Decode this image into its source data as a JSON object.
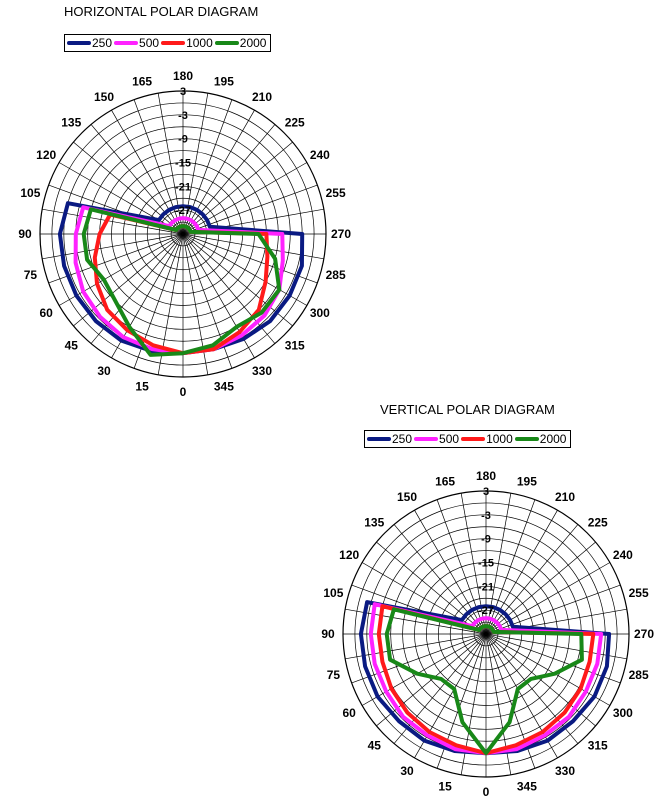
{
  "chart_data": [
    {
      "type": "polar-line",
      "title": "HORIZONTAL POLAR DIAGRAM",
      "angle_labels": [
        "0",
        "15",
        "30",
        "45",
        "60",
        "75",
        "90",
        "105",
        "120",
        "135",
        "150",
        "165",
        "180",
        "195",
        "210",
        "225",
        "240",
        "255",
        "270",
        "285",
        "300",
        "315",
        "330",
        "345"
      ],
      "radial_labels": [
        "3",
        "-3",
        "-9",
        "-15",
        "-21",
        "-27"
      ],
      "rlim": [
        -33,
        3
      ],
      "angles": [
        0,
        15,
        30,
        45,
        60,
        75,
        90,
        105,
        120,
        135,
        150,
        165,
        180,
        195,
        210,
        225,
        240,
        255,
        270,
        285,
        300,
        315,
        330,
        345
      ],
      "series": [
        {
          "name": "250",
          "color": "#0a1a82",
          "values": [
            -3,
            -2.5,
            -2,
            -2,
            -2,
            -2,
            -2,
            -3,
            -26,
            -26,
            -26,
            -26,
            -26,
            -26,
            -26,
            -26,
            -26,
            -26,
            -3,
            -2,
            -2,
            -2,
            -2.5,
            -3
          ]
        },
        {
          "name": "500",
          "color": "#ff22ff",
          "values": [
            -3,
            -3,
            -3,
            -3.5,
            -4,
            -5,
            -6,
            -7,
            -29,
            -29,
            -29,
            -29,
            -29,
            -29,
            -29,
            -29,
            -29,
            -29,
            -8,
            -7,
            -5,
            -4,
            -3.5,
            -3
          ]
        },
        {
          "name": "1000",
          "color": "#ff1a1a",
          "values": [
            -3,
            -4,
            -5,
            -6,
            -8,
            -10,
            -12,
            -14,
            -31,
            -31,
            -31,
            -31,
            -31,
            -31,
            -31,
            -31,
            -31,
            -31,
            -12,
            -11,
            -9,
            -6,
            -4.5,
            -3
          ]
        },
        {
          "name": "2000",
          "color": "#188818",
          "values": [
            -3,
            -1.5,
            -6,
            -9,
            -10,
            -8,
            -8,
            -9,
            -31,
            -31,
            -31,
            -31,
            -31,
            -31,
            -31,
            -31,
            -31,
            -31,
            -14,
            -9,
            -5,
            -5,
            -6,
            -4
          ]
        }
      ]
    },
    {
      "type": "polar-line",
      "title": "VERTICAL POLAR DIAGRAM",
      "angle_labels": [
        "0",
        "15",
        "30",
        "45",
        "60",
        "75",
        "90",
        "105",
        "120",
        "135",
        "150",
        "165",
        "180",
        "195",
        "210",
        "225",
        "240",
        "255",
        "270",
        "285",
        "300",
        "315",
        "330",
        "345"
      ],
      "radial_labels": [
        "3",
        "-3",
        "-9",
        "-15",
        "-21",
        "-27"
      ],
      "rlim": [
        -33,
        3
      ],
      "angles": [
        0,
        15,
        30,
        45,
        60,
        75,
        90,
        105,
        120,
        135,
        150,
        165,
        180,
        195,
        210,
        225,
        240,
        255,
        270,
        285,
        300,
        315,
        330,
        345
      ],
      "series": [
        {
          "name": "250",
          "color": "#0a1a82",
          "values": [
            -3,
            -2.5,
            -2,
            -2,
            -1.5,
            -1.5,
            -1.5,
            -2,
            -26,
            -26,
            -26,
            -26,
            -26,
            -26,
            -26,
            -26,
            -26,
            -26,
            -2,
            -1.5,
            -1.5,
            -2,
            -2,
            -2.5
          ]
        },
        {
          "name": "500",
          "color": "#ff22ff",
          "values": [
            -3,
            -3,
            -3.5,
            -3.5,
            -4,
            -4,
            -4,
            -4,
            -29,
            -29,
            -29,
            -29,
            -29,
            -29,
            -29,
            -29,
            -29,
            -29,
            -4,
            -4,
            -4,
            -3.5,
            -3.5,
            -3
          ]
        },
        {
          "name": "1000",
          "color": "#ff1a1a",
          "values": [
            -3,
            -4,
            -4.5,
            -5,
            -5.5,
            -6,
            -6,
            -6,
            -31,
            -31,
            -31,
            -31,
            -31,
            -31,
            -31,
            -31,
            -31,
            -31,
            -6,
            -6,
            -5.5,
            -5,
            -4.5,
            -4
          ]
        },
        {
          "name": "2000",
          "color": "#188818",
          "values": [
            -3,
            -10,
            -17,
            -17,
            -13,
            -8,
            -8,
            -9,
            -31,
            -31,
            -31,
            -31,
            -31,
            -31,
            -31,
            -31,
            -31,
            -31,
            -9,
            -8,
            -13,
            -17,
            -17,
            -10
          ]
        }
      ]
    }
  ]
}
